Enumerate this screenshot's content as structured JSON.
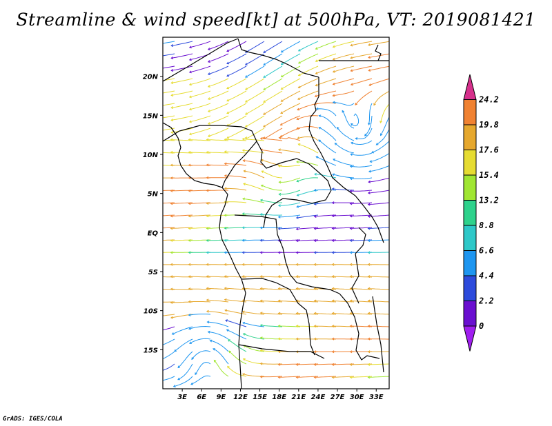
{
  "title": "Streamline & wind speed[kt] at 500hPa, VT: 2019081421",
  "footer": "GrADS: IGES/COLA",
  "map": {
    "lon_range": [
      0,
      35
    ],
    "lat_range": [
      -20,
      25
    ],
    "lat_ticks": [
      {
        "value": 20,
        "label": "20N"
      },
      {
        "value": 15,
        "label": "15N"
      },
      {
        "value": 10,
        "label": "10N"
      },
      {
        "value": 5,
        "label": "5N"
      },
      {
        "value": 0,
        "label": "EQ"
      },
      {
        "value": -5,
        "label": "5S"
      },
      {
        "value": -10,
        "label": "10S"
      },
      {
        "value": -15,
        "label": "15S"
      }
    ],
    "lon_ticks": [
      {
        "value": 3,
        "label": "3E"
      },
      {
        "value": 6,
        "label": "6E"
      },
      {
        "value": 9,
        "label": "9E"
      },
      {
        "value": 12,
        "label": "12E"
      },
      {
        "value": 15,
        "label": "15E"
      },
      {
        "value": 18,
        "label": "18E"
      },
      {
        "value": 21,
        "label": "21E"
      },
      {
        "value": 24,
        "label": "24E"
      },
      {
        "value": 27,
        "label": "27E"
      },
      {
        "value": 30,
        "label": "30E"
      },
      {
        "value": 33,
        "label": "33E"
      }
    ]
  },
  "colorbar": {
    "labels": [
      "24.2",
      "19.8",
      "17.6",
      "15.4",
      "13.2",
      "8.8",
      "6.6",
      "4.4",
      "2.2",
      "0"
    ],
    "colors": [
      "#d6308c",
      "#f08232",
      "#e6a82e",
      "#e6dc32",
      "#a0e632",
      "#2ed28c",
      "#2ec8c8",
      "#1e96f0",
      "#2d4bdc",
      "#6a0fd0",
      "#a01ef0"
    ]
  }
}
